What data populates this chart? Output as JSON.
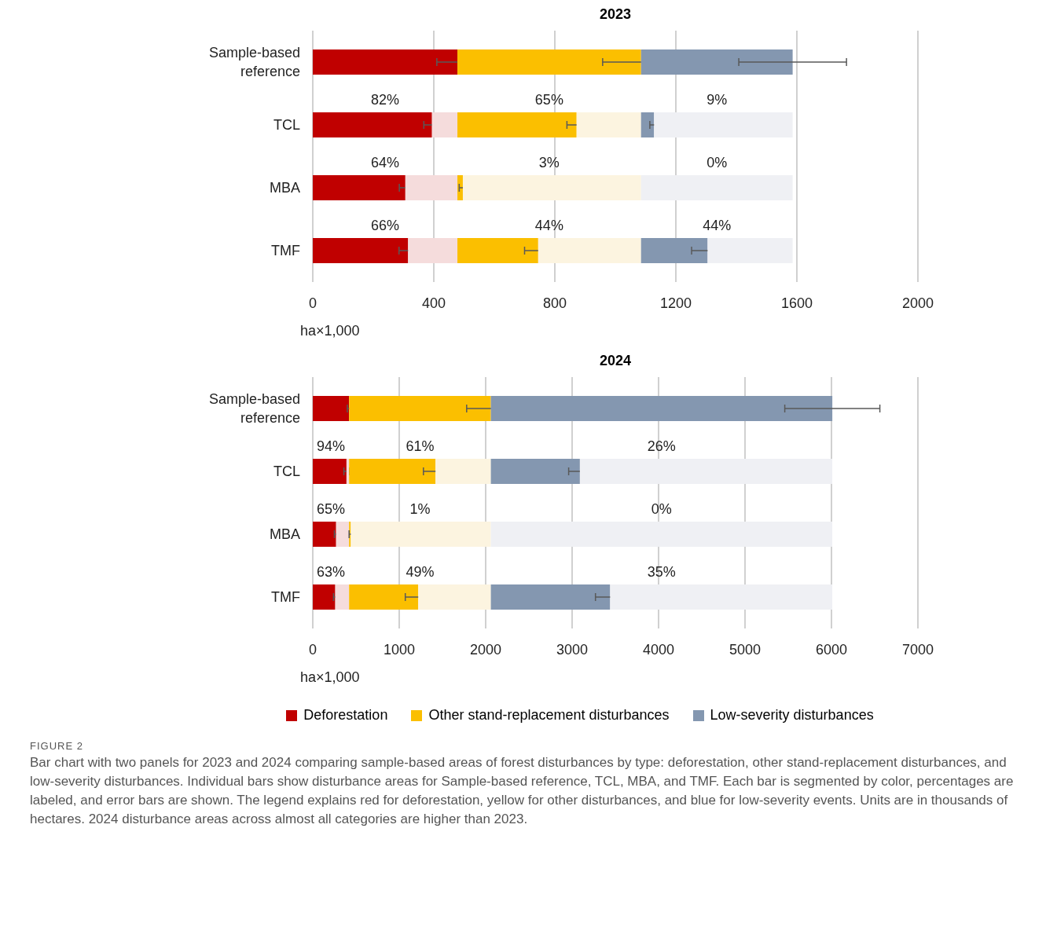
{
  "chart_data": [
    {
      "type": "bar",
      "title": "2023",
      "orientation": "horizontal",
      "stacked": true,
      "categories": [
        "Sample-based reference",
        "TCL",
        "MBA",
        "TMF"
      ],
      "xlim": [
        0,
        2000
      ],
      "xticks": [
        0,
        400,
        800,
        1200,
        1600,
        2000
      ],
      "xlabel": "ha×1,000",
      "grid": "x",
      "legend": false,
      "annotations": [
        "82%",
        "65%",
        "9%",
        "64%",
        "3%",
        "0%",
        "66%",
        "44%",
        "44%"
      ],
      "series": [
        {
          "color": "#c00000",
          "values": [
            478,
            394,
            306,
            315
          ],
          "errors": [
            68,
            27,
            20,
            30
          ]
        },
        {
          "color": "#f5dcdc",
          "values": [
            0,
            84,
            172,
            163
          ]
        },
        {
          "color": "#fbbf00",
          "values": [
            607,
            394,
            18,
            267
          ],
          "errors": [
            127,
            32,
            12,
            45
          ]
        },
        {
          "color": "#fcf4e0",
          "values": [
            0,
            213,
            589,
            340
          ]
        },
        {
          "color": "#8497b0",
          "values": [
            501,
            43,
            0,
            220
          ],
          "errors": [
            178,
            14,
            null,
            53
          ]
        },
        {
          "color": "#eff0f4",
          "values": [
            0,
            458,
            501,
            281
          ]
        }
      ]
    },
    {
      "type": "bar",
      "title": "2024",
      "orientation": "horizontal",
      "stacked": true,
      "categories": [
        "Sample-based reference",
        "TCL",
        "MBA",
        "TMF"
      ],
      "xlim": [
        0,
        7000
      ],
      "xticks": [
        0,
        1000,
        2000,
        3000,
        4000,
        5000,
        6000,
        7000
      ],
      "xlabel": "ha×1,000",
      "grid": "x",
      "legend": "bottom",
      "annotations": [
        "94%",
        "61%",
        "26%",
        "65%",
        "1%",
        "0%",
        "63%",
        "49%",
        "35%",
        "FIGURE 2",
        "Bar chart with two panels for 2023 and 2024 comparing sample-based areas of forest disturbances by type: deforestation, other stand-replacement disturbances, and low-severity disturbances. Individual bars show disturbance areas for Sample-based reference, TCL, MBA, and TMF. Each bar is segmented by color, percentages are labeled, and error bars are shown. The legend explains red for deforestation, yellow for other disturbances, and blue for low-severity events. Units are in thousands of hectares. 2024 disturbance areas across almost all categories are higher than 2023."
      ],
      "series": [
        {
          "name": "Deforestation",
          "color": "#c00000",
          "values": [
            420,
            390,
            270,
            260
          ],
          "errors": [
            20,
            30,
            20,
            20
          ]
        },
        {
          "color": "#f5dcdc",
          "values": [
            0,
            30,
            150,
            160
          ]
        },
        {
          "name": "Other stand-replacement disturbances",
          "color": "#fbbf00",
          "values": [
            1640,
            1000,
            20,
            800
          ],
          "errors": [
            280,
            140,
            20,
            150
          ]
        },
        {
          "color": "#fcf4e0",
          "values": [
            0,
            640,
            1620,
            840
          ]
        },
        {
          "name": "Low-severity disturbances",
          "color": "#8497b0",
          "values": [
            3950,
            1030,
            0,
            1380
          ],
          "errors": [
            550,
            130,
            null,
            170
          ]
        },
        {
          "color": "#eff0f4",
          "values": [
            0,
            2920,
            3950,
            2570
          ]
        }
      ]
    }
  ]
}
